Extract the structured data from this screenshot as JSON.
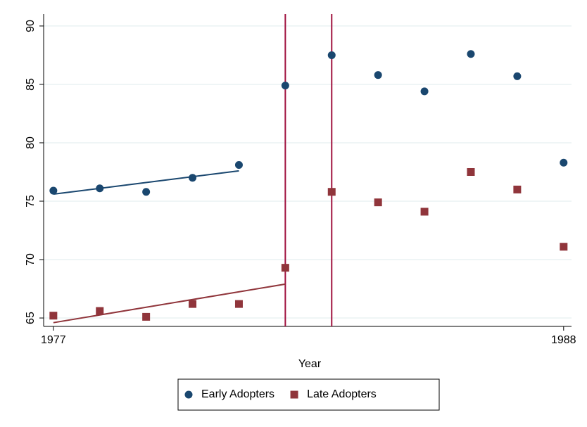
{
  "chart_data": {
    "type": "scatter",
    "x_label": "Year",
    "x": [
      1977,
      1978,
      1979,
      1980,
      1981,
      1982,
      1983,
      1984,
      1985,
      1986,
      1987,
      1988
    ],
    "series": [
      {
        "name": "Early Adopters",
        "color": "#1a476f",
        "marker": "circle",
        "values": [
          75.9,
          76.1,
          75.8,
          77.0,
          78.1,
          84.9,
          87.5,
          85.8,
          84.4,
          87.6,
          85.7,
          78.3
        ]
      },
      {
        "name": "Late Adopters",
        "color": "#90353b",
        "marker": "square",
        "values": [
          65.2,
          65.6,
          65.1,
          66.2,
          66.2,
          69.3,
          75.8,
          74.9,
          74.1,
          77.5,
          76.0,
          71.1
        ]
      }
    ],
    "fit_lines": [
      {
        "color": "#1a476f",
        "x": [
          1977,
          1981
        ],
        "values": [
          75.6,
          77.6
        ]
      },
      {
        "color": "#90353b",
        "x": [
          1977,
          1982
        ],
        "values": [
          64.6,
          67.9
        ]
      }
    ],
    "vlines": [
      1982,
      1983
    ],
    "vline_color": "#a0123f",
    "xlim": [
      1976.79,
      1988.17
    ],
    "xticks": [
      1977,
      1988
    ],
    "ylim": [
      64.28,
      91.02
    ],
    "yticks": [
      65,
      70,
      75,
      80,
      85,
      90
    ],
    "grid": true,
    "legend": "bottom"
  }
}
